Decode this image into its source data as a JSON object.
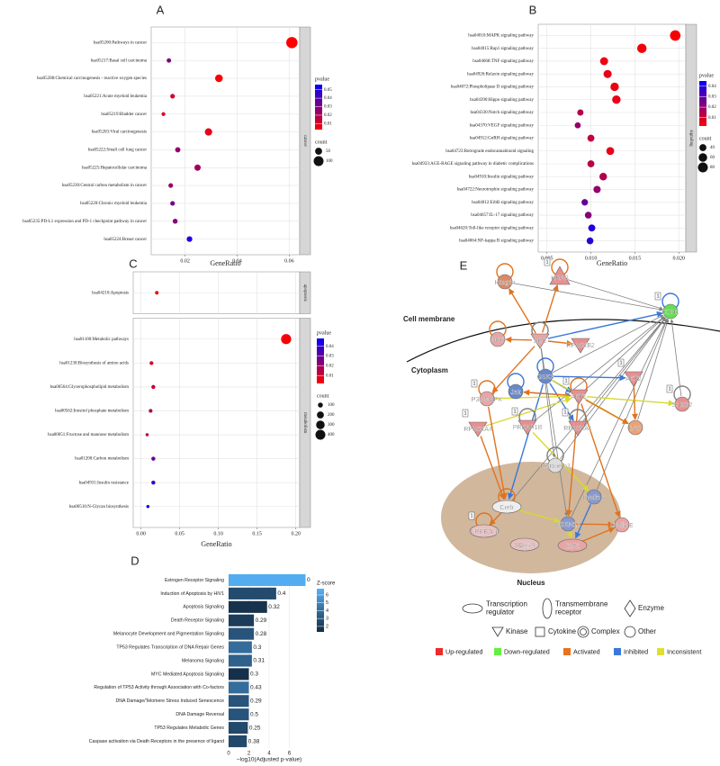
{
  "chart_data": [
    {
      "type": "dot",
      "panel": "A",
      "xlabel": "GeneRatio",
      "xlim": [
        0.007,
        0.064
      ],
      "xticks": [
        0.02,
        0.04,
        0.06
      ],
      "pvalue_title": "pvalue",
      "pvalue_lim": [
        0.003,
        0.056
      ],
      "pvalue_ticks": [
        0.05,
        0.04,
        0.03,
        0.02,
        0.01
      ],
      "color_low": "#ff0000",
      "color_high": "#0000ff",
      "count_title": "count",
      "count_ticks": [
        50,
        100
      ],
      "facets": [
        {
          "strip": "cancer",
          "categories": [
            "hsa05200:Pathways in cancer",
            "hsa05217:Basal cell carcinoma",
            "hsa05208:Chemical carcinogenesis - reactive oxygen species",
            "hsa05221:Acute myeloid leukemia",
            "hsa05219:Bladder cancer",
            "hsa05203:Viral carcinogenesis",
            "hsa05222:Small cell lung cancer",
            "hsa05225:Hepatocellular carcinoma",
            "hsa05230:Central carbon metabolism in cancer",
            "hsa05220:Chronic myeloid leukemia",
            "hsa05235:PD-L1 expression and PD-1 checkpoint pathway in cancer",
            "hsa05224:Breast cancer"
          ],
          "values": [
            0.061,
            0.0138,
            0.033,
            0.0152,
            0.0117,
            0.029,
            0.0172,
            0.0248,
            0.0145,
            0.0152,
            0.0162,
            0.0217
          ],
          "pvalues": [
            0.003,
            0.03,
            0.004,
            0.012,
            0.01,
            0.008,
            0.025,
            0.022,
            0.025,
            0.032,
            0.028,
            0.05
          ],
          "counts": [
            130,
            20,
            60,
            22,
            15,
            55,
            28,
            40,
            22,
            22,
            25,
            32
          ]
        }
      ]
    },
    {
      "type": "dot",
      "panel": "B",
      "xlabel": "GeneRatio",
      "xlim": [
        0.004,
        0.0208
      ],
      "xticks": [
        0.005,
        {
          "value": 0.01,
          "label": "0.010"
        },
        0.015,
        {
          "value": 0.02,
          "label": "0.020"
        }
      ],
      "pvalue_title": "pvalue",
      "pvalue_lim": [
        0.002,
        0.045
      ],
      "pvalue_ticks": [
        0.04,
        0.03,
        0.02,
        0.01
      ],
      "color_low": "#ff0000",
      "color_high": "#0000ff",
      "count_title": "count",
      "count_ticks": [
        40,
        60,
        80
      ],
      "facets": [
        {
          "strip": "signaling",
          "categories": [
            "hsa04010:MAPK signaling pathway",
            "hsa04015:Rap1 signaling pathway",
            "hsa04668:TNF signaling pathway",
            "hsa04926:Relaxin signaling pathway",
            "hsa04072:Phospholipase D signaling pathway",
            "hsa04390:Hippo signaling pathway",
            "hsa04330:Notch signaling pathway",
            "hsa04370:VEGF signaling pathway",
            "hsa04912:GnRH signaling pathway",
            "hsa04723:Retrograde endocannabinoid signaling",
            "hsa04933:AGE-RAGE signaling pathway in diabetic complications",
            "hsa04910:Insulin signaling pathway",
            "hsa04722:Neurotrophin signaling pathway",
            "hsa04012:ErbB signaling pathway",
            "hsa04657:IL-17 signaling pathway",
            "hsa04620:Toll-like receptor signaling pathway",
            "hsa04064:NF-kappa B signaling pathway"
          ],
          "values": [
            0.0196,
            0.0158,
            0.0115,
            0.0119,
            0.0127,
            0.0129,
            0.0088,
            0.0085,
            0.01,
            0.0122,
            0.01,
            0.0114,
            0.0107,
            0.0093,
            0.0097,
            0.0101,
            0.0099
          ],
          "pvalues": [
            0.003,
            0.004,
            0.005,
            0.006,
            0.005,
            0.006,
            0.015,
            0.02,
            0.012,
            0.006,
            0.014,
            0.015,
            0.02,
            0.028,
            0.022,
            0.04,
            0.038
          ],
          "counts": [
            90,
            72,
            52,
            54,
            58,
            58,
            32,
            30,
            40,
            50,
            40,
            47,
            43,
            35,
            38,
            40,
            38
          ]
        }
      ]
    },
    {
      "type": "dot",
      "panel": "C",
      "xlabel": "GeneRatio",
      "xlim": [
        -0.01,
        0.205
      ],
      "xticks": [
        {
          "value": 0,
          "label": "0.00"
        },
        0.05,
        {
          "value": 0.1,
          "label": "0.10"
        },
        0.15,
        {
          "value": 0.2,
          "label": "0.20"
        }
      ],
      "pvalue_title": "pvalue",
      "pvalue_lim": [
        0.002,
        0.048
      ],
      "pvalue_ticks": [
        0.04,
        0.03,
        0.02,
        0.01
      ],
      "color_low": "#ff0000",
      "color_high": "#0000ff",
      "count_title": "count",
      "count_ticks": [
        100,
        200,
        300,
        400
      ],
      "facets": [
        {
          "strip": "apoptosis",
          "categories": [
            "hsa04210:Apoptosis"
          ],
          "values": [
            0.0205
          ],
          "pvalues": [
            0.006
          ],
          "counts": [
            50
          ]
        },
        {
          "strip": "metabolism",
          "categories": [
            "hsa01100:Metabolic pathways",
            "hsa01230:Biosynthesis of amino acids",
            "hsa00564:Glycerophospholipid metabolism",
            "hsa00562:Inositol phosphate metabolism",
            "hsa00051:Fructose and mannose metabolism",
            "hsa01200:Carbon metabolism",
            "hsa04931:Insulin resistance",
            "hsa00510:N-Glycan biosynthesis"
          ],
          "values": [
            0.1875,
            0.0136,
            0.016,
            0.0125,
            0.008,
            0.016,
            0.016,
            0.009
          ],
          "pvalues": [
            0.003,
            0.008,
            0.012,
            0.016,
            0.014,
            0.03,
            0.038,
            0.046
          ],
          "counts": [
            420,
            60,
            65,
            55,
            40,
            65,
            65,
            40
          ]
        }
      ]
    },
    {
      "type": "bar",
      "orientation": "horizontal",
      "panel": "D",
      "xlabel": "−log10(Adjusted p-value)",
      "xlim": [
        0,
        8
      ],
      "xticks": [
        0,
        2,
        4,
        6
      ],
      "categories": [
        "Estrogen Receptor Signaling",
        "Induction of Apoptosis by HIV1",
        "Apoptosis Signaling",
        "Death Receptor Signaling",
        "Melanocyte Development and Pigmentation Signaling",
        "TP53 Regulates Transcription of DNA Repair Genes",
        "Melanoma Signaling",
        "MYC Mediated Apoptosis Signaling",
        "Regulation of TP53 Activity through Association with Co-factors",
        "DNA Damage/Telomere Stress Induced Senescence",
        "DNA Damage Reversal",
        "TP53 Regulates Metabolic Genes",
        "Caspase activation via Death Receptors in the presence of ligand"
      ],
      "values": [
        7.6,
        4.7,
        3.8,
        2.5,
        2.5,
        2.3,
        2.3,
        2.0,
        2.0,
        2.0,
        2.0,
        1.9,
        1.8
      ],
      "ratios": [
        0,
        0.4,
        0.32,
        0.29,
        0.28,
        0.3,
        0.31,
        0.3,
        0.43,
        0.29,
        0.5,
        0.25,
        0.38
      ],
      "zscore": [
        6.6,
        2.6,
        1.6,
        2.0,
        3.0,
        4.0,
        3.5,
        1.5,
        4.0,
        3.0,
        3.0,
        2.5,
        2.5
      ],
      "z_title": "Z-score",
      "zlim": [
        1.3,
        6.8
      ],
      "zticks": [
        2,
        3,
        4,
        5,
        6
      ],
      "color_low": "#132b43",
      "color_high": "#56b1f7"
    }
  ],
  "network": {
    "panel": "E",
    "membrane": "Cell membrane",
    "cytoplasm": "Cytoplasm",
    "nucleus": "Nucleus",
    "nodes": [
      {
        "label": "Integrin",
        "color": "#d98a6a"
      },
      {
        "label": "HRAS",
        "color": "#e88f8f",
        "badge": "1"
      },
      {
        "label": "CDH1",
        "color": "#66dd55",
        "badge": "1"
      },
      {
        "label": "NCK",
        "color": "#e8a5a5"
      },
      {
        "label": "SRC",
        "color": "#e8a5a5"
      },
      {
        "label": "RPS6KB2",
        "color": "#e88f8f"
      },
      {
        "label": "GSK3",
        "color": "#6688cc"
      },
      {
        "label": "AKT2",
        "color": "#e88f8f",
        "badge": "1"
      },
      {
        "label": "P38 MAPK",
        "color": "#e8a5a5",
        "badge": "1"
      },
      {
        "label": "Jnk",
        "color": "#6688cc"
      },
      {
        "label": "AKT1",
        "color": "#e88f8f",
        "badge": "1"
      },
      {
        "label": "SH2B2",
        "color": "#e88f8f",
        "badge": "1"
      },
      {
        "label": "RPS6KA4",
        "color": "#e88f8f",
        "badge": "1"
      },
      {
        "label": "PRKAR1B",
        "color": "#e88f8f",
        "badge": "1"
      },
      {
        "label": "RPS6KA1",
        "color": "#e88f8f",
        "badge": "1"
      },
      {
        "label": "BAD",
        "color": "#f0a070"
      },
      {
        "label": "Histone h3",
        "color": "#dddddd"
      },
      {
        "label": "Creb",
        "color": "#eeeeee"
      },
      {
        "label": "Cyclin A",
        "color": "#8899cc"
      },
      {
        "label": "CDKN1A",
        "color": "#8899cc"
      },
      {
        "label": "Cyclin E",
        "color": "#e8a5a5"
      },
      {
        "label": "CREB3L1",
        "color": "#e8c0c0",
        "badge": "1"
      },
      {
        "label": "SOX10",
        "color": "#e8c0c0"
      },
      {
        "label": "E2F1",
        "color": "#e8a5a5"
      }
    ],
    "shape_legend": [
      {
        "label": [
          "Transcription",
          "regulator"
        ]
      },
      {
        "label": [
          "Transmembrane",
          "receptor"
        ]
      },
      {
        "label": [
          "Enzyme"
        ]
      },
      {
        "label": [
          "Kinase"
        ]
      },
      {
        "label": [
          "Cytokine"
        ]
      },
      {
        "label": [
          "Complex"
        ]
      },
      {
        "label": [
          "Other"
        ]
      }
    ],
    "color_legend": [
      {
        "label": "Up-regulated",
        "color": "#ee2a2a"
      },
      {
        "label": "Down-regulated",
        "color": "#66ee44"
      },
      {
        "label": "Activated",
        "color": "#e8731e"
      },
      {
        "label": "Inhibited",
        "color": "#3a78d8"
      },
      {
        "label": "Inconsistent",
        "color": "#dde030"
      }
    ]
  }
}
